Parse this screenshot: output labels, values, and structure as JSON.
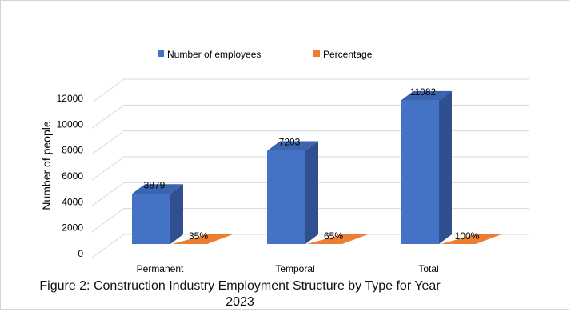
{
  "chart_data": {
    "type": "bar",
    "title": "",
    "xlabel": "",
    "ylabel": "Number of people",
    "ylim": [
      0,
      12000
    ],
    "yticks": [
      0,
      2000,
      4000,
      6000,
      8000,
      10000,
      12000
    ],
    "categories": [
      "Permanent",
      "Temporal",
      "Total"
    ],
    "series": [
      {
        "name": "Number of employees",
        "values": [
          3879,
          7203,
          11082
        ],
        "color": "#4472c4",
        "labels": [
          "3879",
          "7203",
          "11082"
        ]
      },
      {
        "name": "Percentage",
        "values": [
          35,
          65,
          100
        ],
        "color": "#ed7d31",
        "labels": [
          "35%",
          "65%",
          "100%"
        ]
      }
    ],
    "legend_position": "top",
    "grid": true,
    "style": "3d"
  },
  "caption": {
    "line1": "Figure 2: Construction Industry Employment Structure by Type for Year",
    "line2": "2023"
  }
}
